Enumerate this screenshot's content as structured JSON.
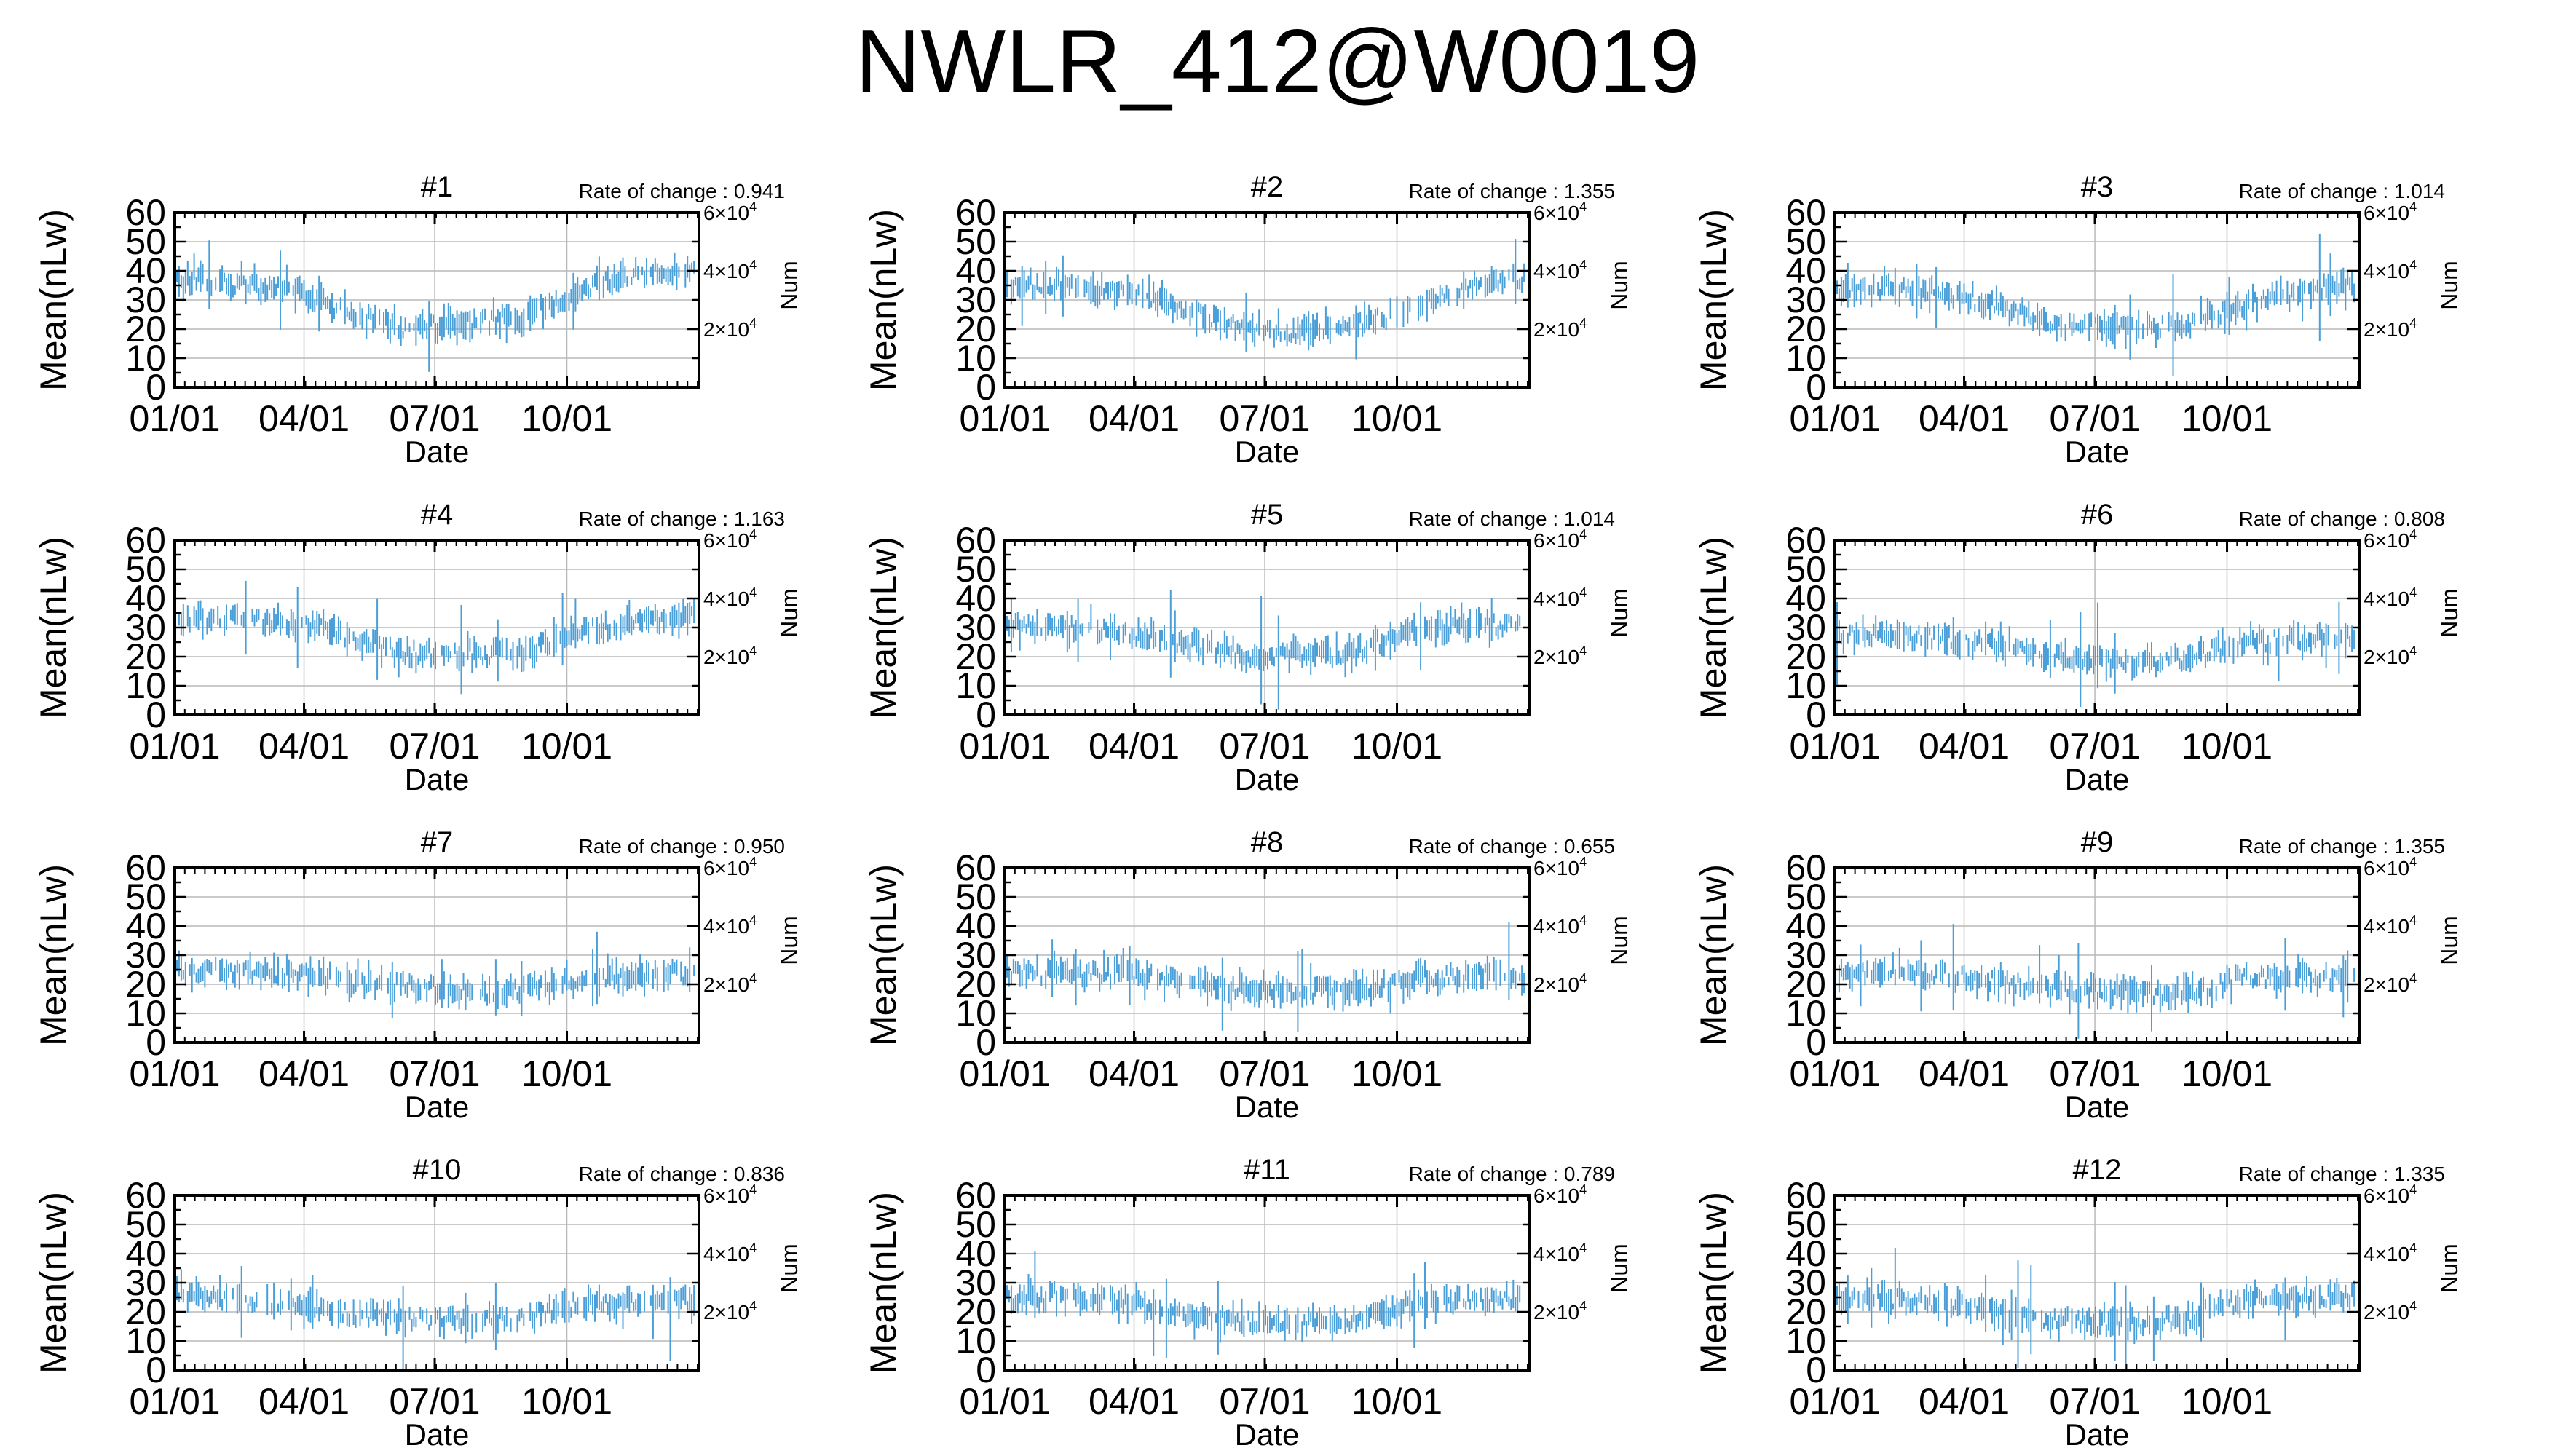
{
  "title": "NWLR_412@W0019",
  "shared": {
    "ylabel": "Mean(nLw)",
    "y2label": "Num",
    "xlabel": "Date",
    "rate_prefix": "Rate of change : ",
    "ylim": [
      0,
      60
    ],
    "yticks": [
      "0",
      "10",
      "20",
      "30",
      "40",
      "50",
      "60"
    ],
    "y2ticks": [
      {
        "value": 20000,
        "mantissa": "2",
        "exponent": "4"
      },
      {
        "value": 40000,
        "mantissa": "4",
        "exponent": "4"
      },
      {
        "value": 60000,
        "mantissa": "6",
        "exponent": "4"
      }
    ],
    "y2lim": [
      0,
      60000
    ],
    "xticks": [
      "01/01",
      "04/01",
      "07/01",
      "10/01"
    ],
    "xtick_days": [
      0,
      90,
      181,
      273
    ],
    "xlim_days": [
      0,
      365
    ],
    "grid": true,
    "series_color": "#4a9fd8"
  },
  "chart_data": [
    {
      "type": "line",
      "title": "#1",
      "rate": "0.941",
      "profile": [
        38,
        36,
        34,
        25,
        20,
        22,
        24,
        33,
        40,
        40
      ]
    },
    {
      "type": "line",
      "title": "#2",
      "rate": "1.355",
      "profile": [
        35,
        35,
        33,
        28,
        20,
        19,
        21,
        28,
        35,
        38
      ]
    },
    {
      "type": "line",
      "title": "#3",
      "rate": "1.014",
      "profile": [
        34,
        34,
        32,
        27,
        21,
        20,
        21,
        28,
        33,
        35
      ]
    },
    {
      "type": "line",
      "title": "#4",
      "rate": "1.163",
      "profile": [
        32,
        33,
        32,
        27,
        21,
        21,
        21,
        29,
        32,
        35
      ]
    },
    {
      "type": "line",
      "title": "#5",
      "rate": "1.014",
      "profile": [
        31,
        30,
        29,
        25,
        21,
        20,
        21,
        30,
        31,
        31
      ]
    },
    {
      "type": "line",
      "title": "#6",
      "rate": "0.808",
      "profile": [
        28,
        27,
        26,
        23,
        19,
        18,
        19,
        25,
        26,
        27
      ]
    },
    {
      "type": "line",
      "title": "#7",
      "rate": "0.950",
      "profile": [
        25,
        24,
        24,
        21,
        19,
        18,
        18,
        22,
        23,
        24
      ]
    },
    {
      "type": "line",
      "title": "#8",
      "rate": "0.655",
      "profile": [
        24,
        24,
        24,
        21,
        19,
        18,
        18,
        22,
        23,
        23
      ]
    },
    {
      "type": "line",
      "title": "#9",
      "rate": "1.355",
      "profile": [
        24,
        24,
        23,
        20,
        18,
        17,
        17,
        22,
        22,
        23
      ]
    },
    {
      "type": "line",
      "title": "#10",
      "rate": "0.836",
      "profile": [
        26,
        24,
        23,
        19,
        17,
        17,
        18,
        23,
        23,
        24
      ]
    },
    {
      "type": "line",
      "title": "#11",
      "rate": "0.789",
      "profile": [
        25,
        25,
        24,
        19,
        17,
        16,
        17,
        23,
        24,
        24
      ]
    },
    {
      "type": "line",
      "title": "#12",
      "rate": "1.335",
      "profile": [
        24,
        24,
        23,
        19,
        17,
        16,
        17,
        24,
        25,
        25
      ]
    }
  ]
}
